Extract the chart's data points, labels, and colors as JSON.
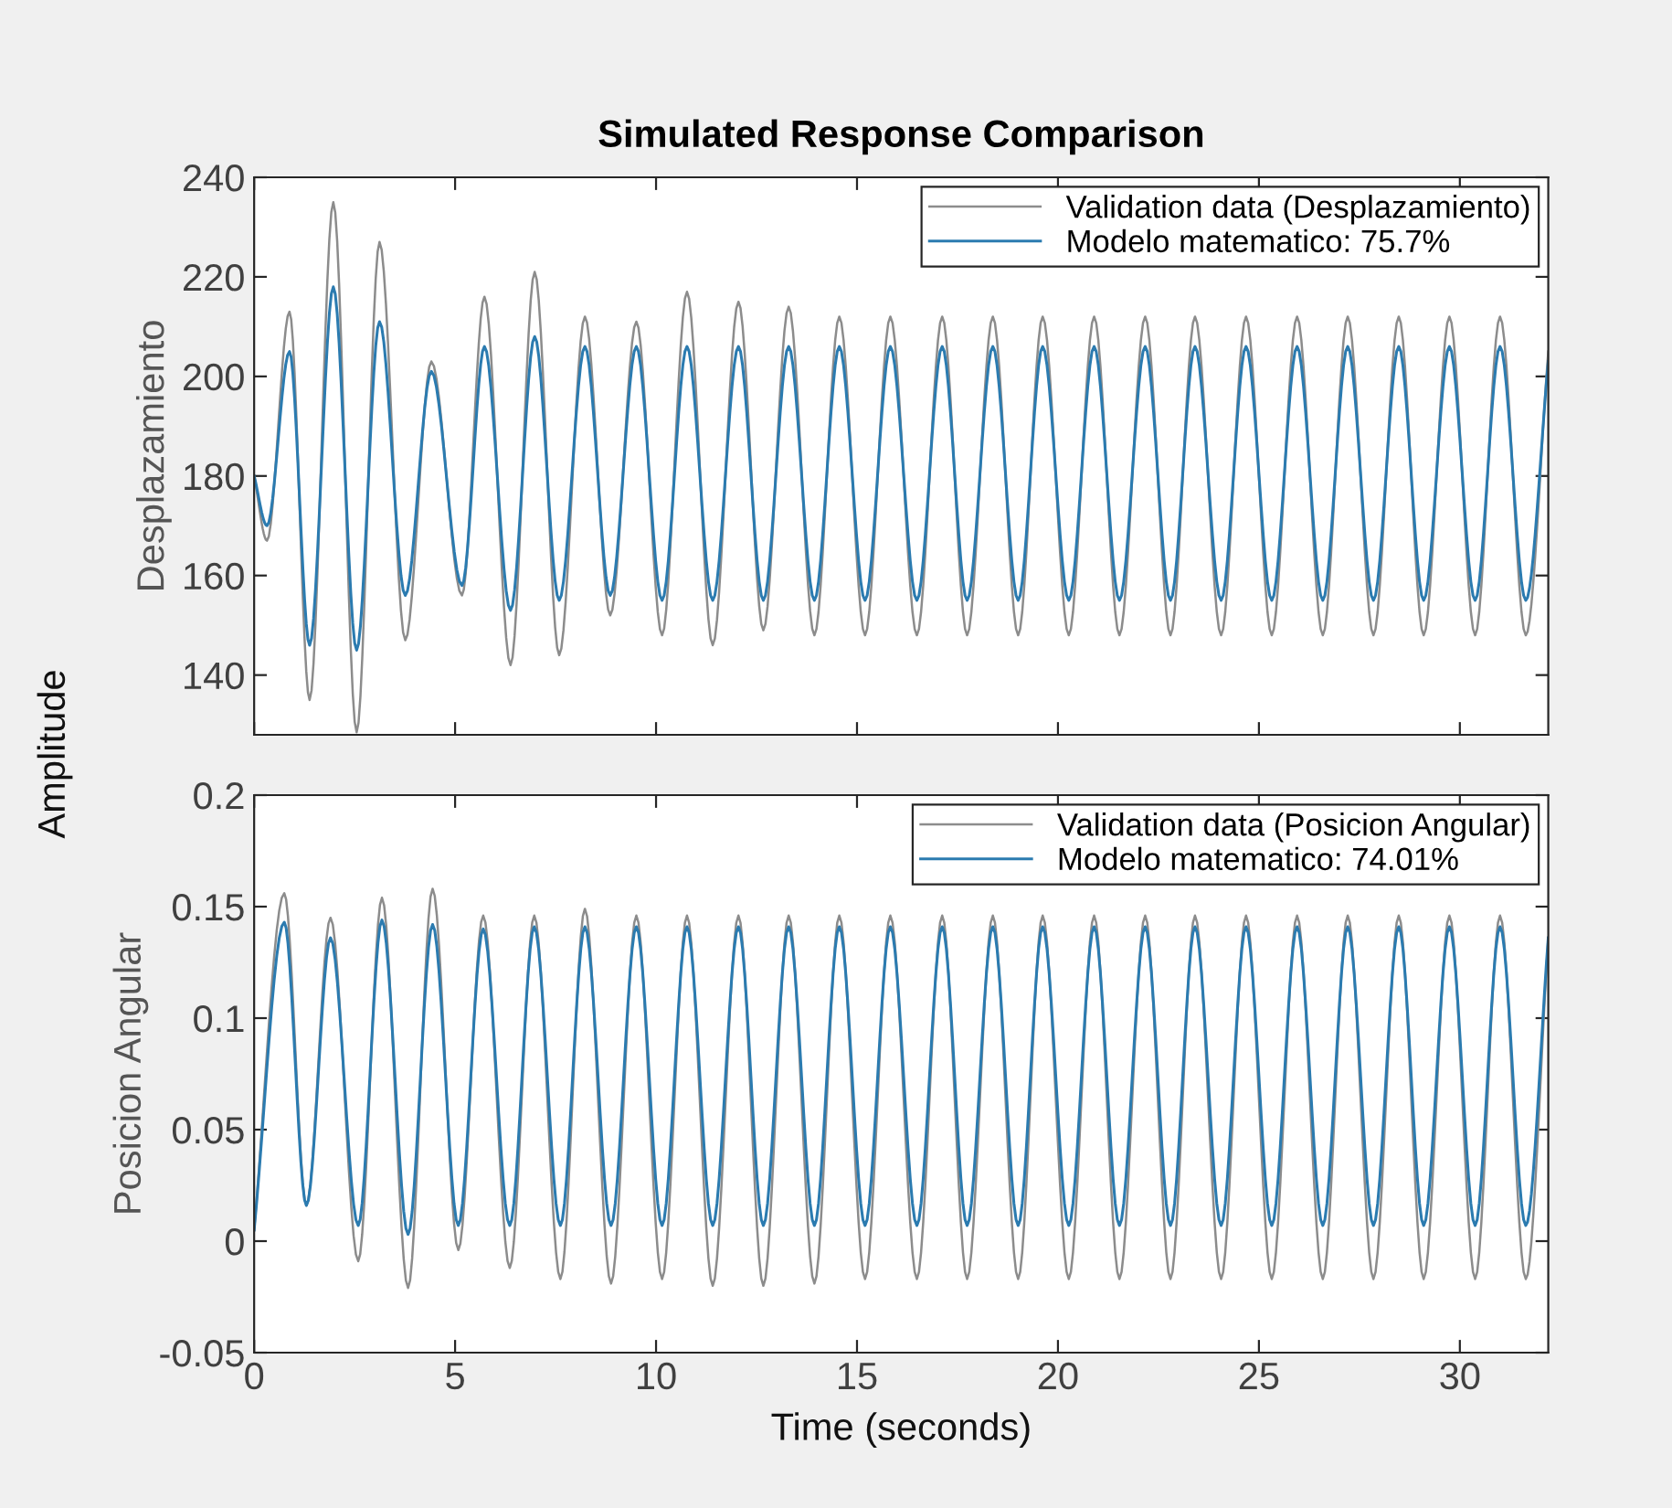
{
  "chart_data": [
    {
      "type": "line",
      "title": "Simulated Response Comparison",
      "ylabel": "Desplazamiento",
      "annotations": [
        "Amplitude"
      ],
      "xlim": [
        0,
        32.2
      ],
      "xticks": [
        0,
        5,
        10,
        15,
        20,
        25,
        30
      ],
      "ylim": [
        128,
        240
      ],
      "yticks": [
        140,
        160,
        180,
        200,
        220,
        240
      ],
      "tick_labels": "y",
      "grid": false,
      "legend": "top right",
      "line_style": "solid",
      "marker": "none",
      "x": [
        0,
        0.32,
        0.88,
        1.38,
        1.97,
        2.55,
        3.12,
        3.76,
        4.41,
        5.17,
        5.73,
        6.38,
        6.98,
        7.59,
        8.23,
        8.86,
        9.51,
        10.15,
        10.77,
        11.41,
        12.05,
        12.67,
        13.3,
        13.94,
        14.56,
        15.2,
        15.83,
        16.49,
        17.12,
        17.74,
        18.38,
        19.01,
        19.62,
        20.27,
        20.9,
        21.53,
        22.17,
        22.8,
        23.41,
        24.06,
        24.68,
        25.32,
        25.95,
        26.59,
        27.21,
        27.85,
        28.48,
        29.1,
        29.74,
        30.38,
        31.0,
        31.64,
        32.2
      ],
      "series": [
        {
          "name": "Validation data (Desplazamiento)",
          "color": "#8c8c8c",
          "values": [
            180,
            167,
            213,
            135,
            235,
            128.5,
            227,
            147,
            203,
            156,
            216,
            142,
            221,
            144,
            212,
            152,
            211,
            148,
            217,
            146,
            215,
            149,
            214,
            148,
            212,
            148,
            212,
            148,
            212,
            148,
            212,
            148,
            212,
            148,
            212,
            148,
            212,
            148,
            212,
            148,
            212,
            148,
            212,
            148,
            212,
            148,
            212,
            148,
            212,
            148,
            212,
            148,
            205
          ]
        },
        {
          "name": "Modelo matematico: 75.7%",
          "color": "#2b7bb0",
          "values": [
            180,
            170,
            205,
            146,
            218,
            145,
            211,
            156,
            201,
            158,
            206,
            153,
            208,
            155,
            206,
            156,
            206,
            155,
            206,
            155,
            206,
            155,
            206,
            155,
            206,
            155,
            206,
            155,
            206,
            155,
            206,
            155,
            206,
            155,
            206,
            155,
            206,
            155,
            206,
            155,
            206,
            155,
            206,
            155,
            206,
            155,
            206,
            155,
            206,
            155,
            206,
            155,
            203
          ]
        }
      ]
    },
    {
      "type": "line",
      "xlabel": "Time (seconds)",
      "ylabel": "Posicion Angular",
      "xlim": [
        0,
        32.2
      ],
      "xticks": [
        0,
        5,
        10,
        15,
        20,
        25,
        30
      ],
      "ylim": [
        -0.05,
        0.2
      ],
      "yticks": [
        -0.05,
        0,
        0.05,
        0.1,
        0.15,
        0.2
      ],
      "grid": false,
      "legend": "top right",
      "line_style": "solid",
      "marker": "none",
      "x": [
        0,
        0.75,
        1.3,
        1.9,
        2.59,
        3.18,
        3.83,
        4.44,
        5.08,
        5.7,
        6.36,
        6.97,
        7.62,
        8.23,
        8.88,
        9.51,
        10.15,
        10.77,
        11.41,
        12.05,
        12.67,
        13.3,
        13.94,
        14.56,
        15.2,
        15.83,
        16.49,
        17.12,
        17.74,
        18.38,
        19.01,
        19.62,
        20.27,
        20.9,
        21.53,
        22.17,
        22.8,
        23.41,
        24.06,
        24.68,
        25.32,
        25.95,
        26.59,
        27.21,
        27.85,
        28.48,
        29.1,
        29.74,
        30.38,
        31.0,
        31.64,
        32.2
      ],
      "series": [
        {
          "name": "Validation data (Posicion Angular)",
          "color": "#8c8c8c",
          "values": [
            0.005,
            0.156,
            0.016,
            0.145,
            -0.009,
            0.154,
            -0.021,
            0.158,
            -0.004,
            0.146,
            -0.012,
            0.146,
            -0.017,
            0.149,
            -0.019,
            0.146,
            -0.017,
            0.146,
            -0.02,
            0.146,
            -0.02,
            0.146,
            -0.019,
            0.146,
            -0.017,
            0.146,
            -0.017,
            0.146,
            -0.017,
            0.146,
            -0.017,
            0.146,
            -0.017,
            0.146,
            -0.017,
            0.146,
            -0.017,
            0.146,
            -0.017,
            0.146,
            -0.017,
            0.146,
            -0.017,
            0.146,
            -0.017,
            0.146,
            -0.017,
            0.146,
            -0.017,
            0.146,
            -0.017,
            0.136
          ]
        },
        {
          "name": "Modelo matematico: 74.01%",
          "color": "#2b7bb0",
          "values": [
            0.005,
            0.143,
            0.016,
            0.136,
            0.007,
            0.144,
            0.003,
            0.142,
            0.007,
            0.14,
            0.007,
            0.141,
            0.007,
            0.141,
            0.007,
            0.141,
            0.007,
            0.141,
            0.007,
            0.141,
            0.007,
            0.141,
            0.007,
            0.141,
            0.007,
            0.141,
            0.007,
            0.141,
            0.007,
            0.141,
            0.007,
            0.141,
            0.007,
            0.141,
            0.007,
            0.141,
            0.007,
            0.141,
            0.007,
            0.141,
            0.007,
            0.141,
            0.007,
            0.141,
            0.007,
            0.141,
            0.007,
            0.141,
            0.007,
            0.141,
            0.007,
            0.136
          ]
        }
      ]
    }
  ]
}
